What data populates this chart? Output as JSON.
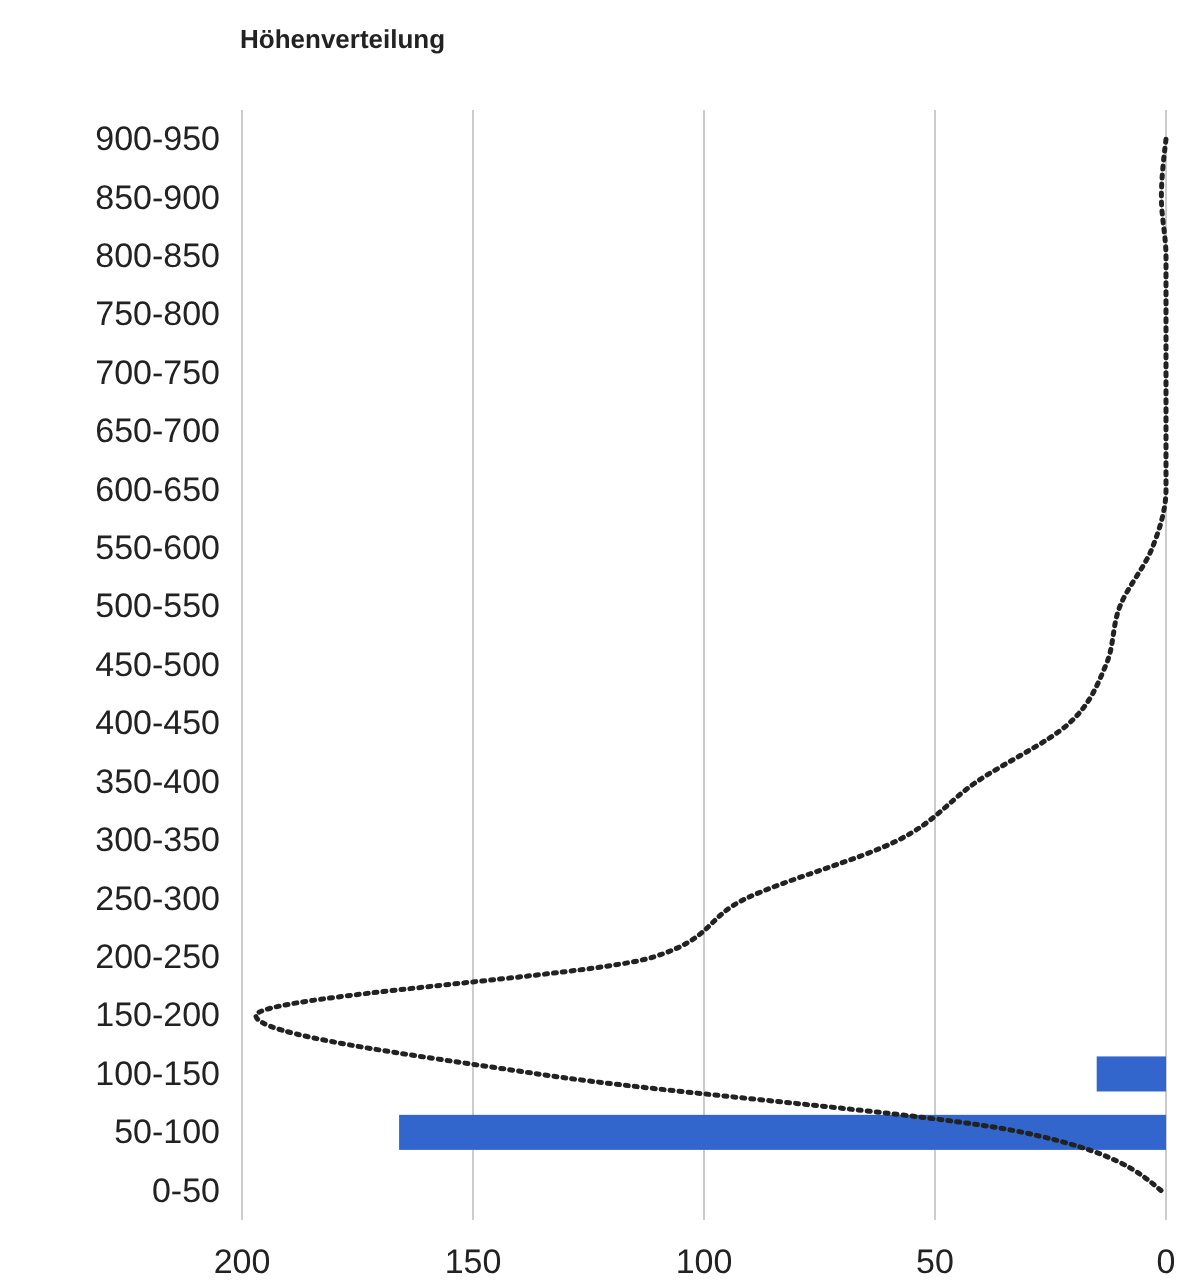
{
  "chart_data": {
    "type": "bar",
    "title": "Höhenverteilung",
    "orientation": "horizontal",
    "categories": [
      "900-950",
      "850-900",
      "800-850",
      "750-800",
      "700-750",
      "650-700",
      "600-650",
      "550-600",
      "500-550",
      "450-500",
      "400-450",
      "350-400",
      "300-350",
      "250-300",
      "200-250",
      "150-200",
      "100-150",
      "50-100",
      "0-50"
    ],
    "series": [
      {
        "color": "#3366cc",
        "values": [
          null,
          null,
          null,
          null,
          null,
          null,
          null,
          null,
          null,
          null,
          null,
          null,
          null,
          null,
          null,
          null,
          15,
          166,
          null
        ]
      },
      {
        "type": "line",
        "color": "#222222",
        "line_style": "dotted",
        "values": [
          0,
          1,
          0,
          0,
          0,
          0,
          0,
          3,
          10,
          13,
          21,
          41,
          58,
          91,
          111,
          197,
          136,
          31,
          1
        ]
      }
    ],
    "xlim": [
      200,
      0
    ],
    "xticks": [
      200,
      150,
      100,
      50,
      0
    ],
    "grid": true
  }
}
